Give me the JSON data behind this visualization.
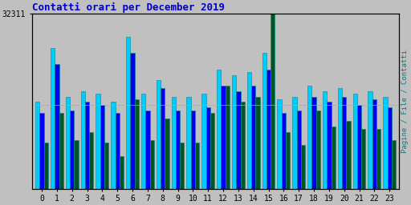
{
  "title": "Contatti orari per December 2019",
  "title_color": "#0000cc",
  "ylabel_right": "Pagine / File / Contatti",
  "ylabel_right_color": "#008080",
  "ytick_label": "32311",
  "background_color": "#c0c0c0",
  "plot_bg_color": "#c0c0c0",
  "border_color": "#000000",
  "hours": [
    0,
    1,
    2,
    3,
    4,
    5,
    6,
    7,
    8,
    9,
    10,
    11,
    12,
    13,
    14,
    15,
    16,
    17,
    18,
    19,
    20,
    21,
    22,
    23
  ],
  "pagine": [
    16000,
    26000,
    17000,
    18000,
    17500,
    16000,
    28000,
    17500,
    20000,
    17000,
    17000,
    17500,
    22000,
    21000,
    21500,
    25000,
    16500,
    17000,
    19000,
    18000,
    18500,
    17500,
    18000,
    17000
  ],
  "file": [
    14000,
    23000,
    14500,
    16000,
    15500,
    14000,
    25000,
    14500,
    18500,
    14500,
    14500,
    15000,
    19000,
    18000,
    19000,
    22000,
    14000,
    14500,
    17000,
    16000,
    17000,
    15500,
    16500,
    15000
  ],
  "contatti": [
    8500,
    14000,
    9000,
    10500,
    8500,
    6000,
    16500,
    9000,
    13000,
    8500,
    8500,
    14000,
    19000,
    16000,
    17000,
    32311,
    10500,
    8000,
    14500,
    11500,
    12500,
    11000,
    11000,
    9000
  ],
  "bar_width": 0.28,
  "color_pagine": "#00ccff",
  "color_file": "#0000ee",
  "color_contatti": "#005522",
  "edge_color": "#008888",
  "ylim": [
    0,
    32311
  ],
  "font_family": "monospace",
  "title_fontsize": 9,
  "tick_fontsize": 7
}
